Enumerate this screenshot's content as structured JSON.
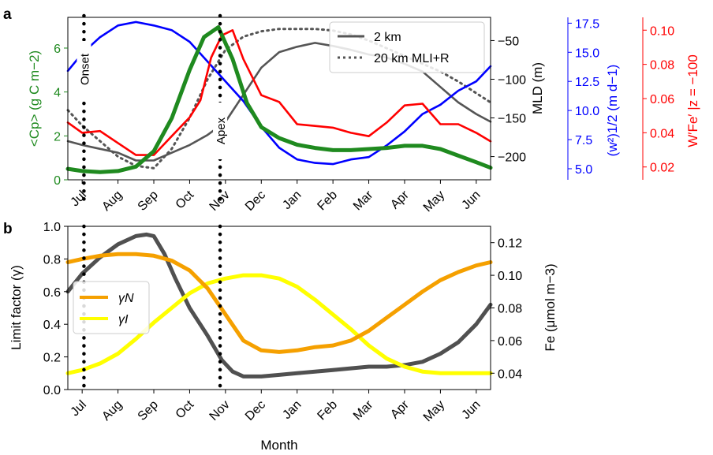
{
  "chart_data": [
    {
      "panel_label": "a",
      "type": "line",
      "x_ticks": [
        "Jul",
        "Aug",
        "Sep",
        "Oct",
        "Nov",
        "Dec",
        "Jan",
        "Feb",
        "Mar",
        "Apr",
        "May",
        "Jun"
      ],
      "xlim": [
        -0.4,
        11.4
      ],
      "grid": false,
      "legend_position": "top-right",
      "legend": [
        "2 km",
        "20 km MLI+R"
      ],
      "axes": {
        "cp": {
          "label": "<Cp> (g C m−2)",
          "ylim": [
            0,
            7.4
          ],
          "ticks": [
            "0",
            "2",
            "4",
            "6"
          ],
          "tick_values": [
            0,
            2,
            4,
            6
          ],
          "color": "#1f8a1f"
        },
        "mld": {
          "label": "MLD (m)",
          "ylim": [
            -230,
            -20
          ],
          "ticks": [
            "−50",
            "−100",
            "−150",
            "−200"
          ],
          "tick_values": [
            -50,
            -100,
            -150,
            -200
          ],
          "color": "#000000"
        },
        "w2": {
          "label": "(w²)1/2 (m d−1)",
          "ylim": [
            4.05,
            18.0
          ],
          "ticks": [
            "5.0",
            "7.5",
            "10.0",
            "12.5",
            "15.0",
            "17.5"
          ],
          "tick_values": [
            5.0,
            7.5,
            10.0,
            12.5,
            15.0,
            17.5
          ],
          "color": "#0000ff"
        },
        "wfe": {
          "label": "W′Fe′ |z = −100",
          "ylim": [
            0.0125,
            0.1075
          ],
          "ticks": [
            "0.02",
            "0.04",
            "0.06",
            "0.08",
            "0.10"
          ],
          "tick_values": [
            0.02,
            0.04,
            0.06,
            0.08,
            0.1
          ],
          "color": "#ff0000"
        }
      },
      "annotations": [
        {
          "text": "Onset",
          "x": 0.05
        },
        {
          "text": "Apex",
          "x": 3.85
        }
      ],
      "series": [
        {
          "name": "2 km",
          "axis": "mld",
          "color": "#555555",
          "style": "solid",
          "x": [
            -0.4,
            0.0,
            0.5,
            1.0,
            1.5,
            2.0,
            2.5,
            3.0,
            3.5,
            4.0,
            4.5,
            5.0,
            5.5,
            6.0,
            6.5,
            7.0,
            7.5,
            8.0,
            8.5,
            9.0,
            9.5,
            10.0,
            10.5,
            11.0,
            11.4
          ],
          "y": [
            -180,
            -185,
            -190,
            -195,
            -205,
            -205,
            -195,
            -185,
            -172,
            -155,
            -120,
            -85,
            -65,
            -58,
            -53,
            -57,
            -62,
            -68,
            -72,
            -80,
            -90,
            -110,
            -130,
            -145,
            -155
          ]
        },
        {
          "name": "20 km MLI+R",
          "axis": "mld",
          "color": "#555555",
          "style": "dotted",
          "x": [
            -0.4,
            0.0,
            0.5,
            1.0,
            1.5,
            2.0,
            2.5,
            3.0,
            3.5,
            4.0,
            4.5,
            5.0,
            5.5,
            6.0,
            6.5,
            7.0,
            7.5,
            8.0,
            8.5,
            9.0,
            9.5,
            10.0,
            10.5,
            11.0,
            11.4
          ],
          "y": [
            -140,
            -160,
            -180,
            -200,
            -212,
            -215,
            -190,
            -150,
            -100,
            -62,
            -45,
            -38,
            -35,
            -35,
            -35,
            -37,
            -42,
            -50,
            -60,
            -70,
            -80,
            -90,
            -103,
            -118,
            -130
          ]
        },
        {
          "name": "Cp",
          "axis": "cp",
          "color": "#1f8a1f",
          "style": "thick",
          "x": [
            -0.4,
            0.0,
            0.5,
            1.0,
            1.5,
            2.0,
            2.5,
            3.0,
            3.4,
            3.8,
            4.2,
            4.6,
            5.0,
            5.5,
            6.0,
            6.5,
            7.0,
            7.5,
            8.0,
            8.5,
            9.0,
            9.5,
            10.0,
            10.5,
            11.0,
            11.4
          ],
          "y": [
            0.5,
            0.4,
            0.35,
            0.4,
            0.6,
            1.3,
            2.8,
            5.0,
            6.5,
            6.95,
            5.5,
            3.5,
            2.4,
            1.9,
            1.6,
            1.45,
            1.35,
            1.35,
            1.4,
            1.45,
            1.55,
            1.55,
            1.4,
            1.1,
            0.8,
            0.55
          ]
        },
        {
          "name": "w",
          "axis": "w2",
          "color": "#0000ff",
          "style": "solid",
          "x": [
            -0.4,
            0.0,
            0.5,
            1.0,
            1.5,
            2.0,
            2.5,
            3.0,
            3.5,
            4.0,
            4.5,
            5.0,
            5.5,
            6.0,
            6.5,
            7.0,
            7.5,
            8.0,
            8.5,
            9.0,
            9.5,
            10.0,
            10.5,
            11.0,
            11.4
          ],
          "y": [
            13.4,
            14.9,
            16.3,
            17.3,
            17.6,
            17.3,
            16.9,
            15.9,
            14.2,
            12.5,
            10.8,
            8.6,
            6.8,
            5.8,
            5.5,
            5.4,
            5.8,
            6.0,
            7.0,
            8.2,
            9.7,
            10.5,
            11.7,
            12.5,
            13.8
          ]
        },
        {
          "name": "WFe",
          "axis": "wfe",
          "color": "#ff0000",
          "style": "solid",
          "x": [
            -0.4,
            0.0,
            0.5,
            1.0,
            1.5,
            2.0,
            2.5,
            3.0,
            3.3,
            3.6,
            3.9,
            4.2,
            4.5,
            5.0,
            5.5,
            6.0,
            6.5,
            7.0,
            7.5,
            8.0,
            8.5,
            9.0,
            9.5,
            10.0,
            10.5,
            11.0,
            11.4
          ],
          "y": [
            0.046,
            0.04,
            0.041,
            0.034,
            0.027,
            0.027,
            0.038,
            0.049,
            0.059,
            0.084,
            0.097,
            0.1,
            0.083,
            0.062,
            0.058,
            0.045,
            0.044,
            0.043,
            0.04,
            0.038,
            0.046,
            0.056,
            0.057,
            0.045,
            0.045,
            0.04,
            0.035
          ]
        }
      ]
    },
    {
      "panel_label": "b",
      "type": "line",
      "x_ticks": [
        "Jul",
        "Aug",
        "Sep",
        "Oct",
        "Nov",
        "Dec",
        "Jan",
        "Feb",
        "Mar",
        "Apr",
        "May",
        "Jun"
      ],
      "xlabel": "Month",
      "xlim": [
        -0.4,
        11.4
      ],
      "grid": false,
      "legend_position": "middle-left",
      "legend": [
        "γN",
        "γI"
      ],
      "axes": {
        "limit": {
          "label": "Limit factor (γ)",
          "ylim": [
            0.0,
            1.0
          ],
          "ticks": [
            "0.0",
            "0.2",
            "0.4",
            "0.6",
            "0.8",
            "1.0"
          ],
          "tick_values": [
            0.0,
            0.2,
            0.4,
            0.6,
            0.8,
            1.0
          ]
        },
        "fe": {
          "label": "Fe (μmol m−3)",
          "ylim": [
            0.03,
            0.13
          ],
          "ticks": [
            "0.04",
            "0.06",
            "0.08",
            "0.10",
            "0.12"
          ],
          "tick_values": [
            0.04,
            0.06,
            0.08,
            0.1,
            0.12
          ]
        }
      },
      "series": [
        {
          "name": "γN",
          "axis": "limit",
          "color": "#f5a000",
          "x": [
            -0.4,
            0.0,
            0.5,
            1.0,
            1.5,
            2.0,
            2.5,
            3.0,
            3.5,
            4.0,
            4.5,
            5.0,
            5.5,
            6.0,
            6.5,
            7.0,
            7.5,
            8.0,
            8.5,
            9.0,
            9.5,
            10.0,
            10.5,
            11.0,
            11.4
          ],
          "y": [
            0.78,
            0.8,
            0.82,
            0.83,
            0.83,
            0.82,
            0.79,
            0.73,
            0.62,
            0.46,
            0.3,
            0.24,
            0.23,
            0.24,
            0.26,
            0.27,
            0.3,
            0.36,
            0.44,
            0.52,
            0.6,
            0.67,
            0.72,
            0.76,
            0.78
          ]
        },
        {
          "name": "γI",
          "axis": "limit",
          "color": "#ffff00",
          "x": [
            -0.4,
            0.0,
            0.5,
            1.0,
            1.5,
            2.0,
            2.5,
            3.0,
            3.5,
            4.0,
            4.5,
            5.0,
            5.5,
            6.0,
            6.5,
            7.0,
            7.5,
            8.0,
            8.5,
            9.0,
            9.5,
            10.0,
            10.5,
            11.0,
            11.4
          ],
          "y": [
            0.1,
            0.12,
            0.16,
            0.22,
            0.31,
            0.41,
            0.5,
            0.59,
            0.65,
            0.68,
            0.7,
            0.7,
            0.68,
            0.63,
            0.55,
            0.46,
            0.37,
            0.27,
            0.19,
            0.14,
            0.11,
            0.1,
            0.1,
            0.1,
            0.1
          ]
        },
        {
          "name": "Fe",
          "axis": "fe",
          "color": "#505050",
          "x": [
            -0.4,
            0.0,
            0.5,
            1.0,
            1.5,
            1.8,
            2.0,
            2.3,
            2.6,
            3.0,
            3.5,
            3.9,
            4.2,
            4.5,
            5.0,
            5.5,
            6.0,
            6.5,
            7.0,
            7.5,
            8.0,
            8.5,
            9.0,
            9.5,
            10.0,
            10.5,
            11.0,
            11.4
          ],
          "y": [
            0.09,
            0.101,
            0.111,
            0.119,
            0.124,
            0.125,
            0.124,
            0.113,
            0.098,
            0.08,
            0.063,
            0.048,
            0.041,
            0.038,
            0.038,
            0.039,
            0.04,
            0.041,
            0.042,
            0.043,
            0.044,
            0.044,
            0.045,
            0.047,
            0.052,
            0.059,
            0.07,
            0.082
          ]
        }
      ]
    }
  ]
}
